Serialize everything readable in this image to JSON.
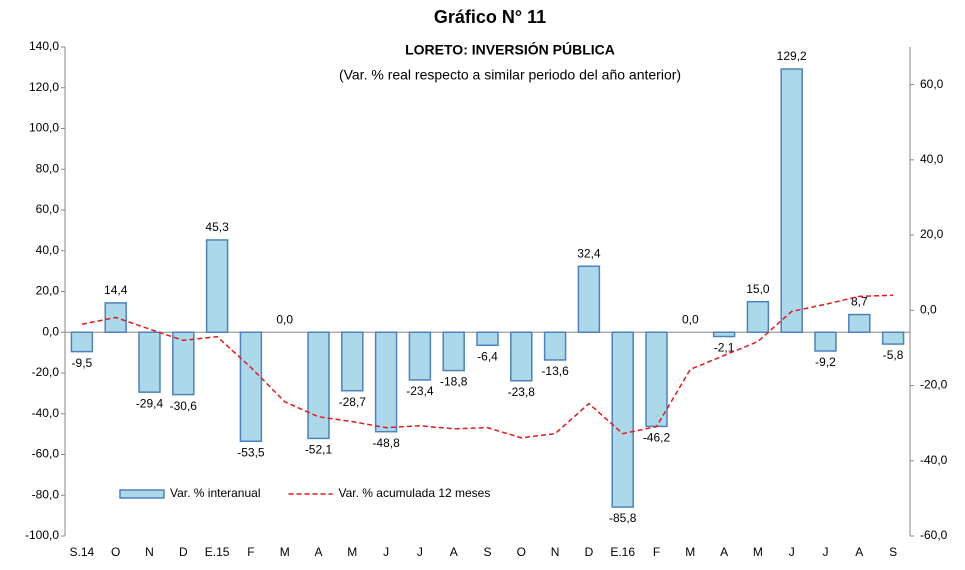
{
  "chart_data": {
    "type": "bar",
    "title": "Gráfico N° 11",
    "subtitle": "LORETO: INVERSIÓN PÚBLICA",
    "subtitle2": "(Var. % real respecto a similar periodo del año anterior)",
    "categories": [
      "S.14",
      "O",
      "N",
      "D",
      "E.15",
      "F",
      "M",
      "A",
      "M",
      "J",
      "J",
      "A",
      "S",
      "O",
      "N",
      "D",
      "E.16",
      "F",
      "M",
      "A",
      "M",
      "J",
      "J",
      "A",
      "S"
    ],
    "series": [
      {
        "name": "Var. % interanual",
        "type": "bar",
        "color": "#acd9ea",
        "stroke": "#4f81bd",
        "values": [
          -9.5,
          14.4,
          -29.4,
          -30.6,
          45.3,
          -53.5,
          0.0,
          -52.1,
          -28.7,
          -48.8,
          -23.4,
          -18.8,
          -6.4,
          -23.8,
          -13.6,
          32.4,
          -85.8,
          -46.2,
          0.0,
          -2.1,
          15.0,
          129.2,
          -9.2,
          8.7,
          -5.8
        ],
        "value_labels": [
          "-9,5",
          "14,4",
          "-29,4",
          "-30,6",
          "45,3",
          "-53,5",
          "0,0",
          "-52,1",
          "-28,7",
          "-48,8",
          "-23,4",
          "-18,8",
          "-6,4",
          "-23,8",
          "-13,6",
          "32,4",
          "-85,8",
          "-46,2",
          "0,0",
          "-2,1",
          "15,0",
          "129,2",
          "-9,2",
          "8,7",
          "-5,8"
        ]
      },
      {
        "name": "Var. % acumulada 12 meses",
        "type": "line",
        "axis": "y2",
        "color": "#e31a1c",
        "dashed": true,
        "values": [
          -3.7,
          -1.9,
          -5.0,
          -8.0,
          -7.0,
          -15.2,
          -24.3,
          -28.3,
          -29.6,
          -31.2,
          -30.7,
          -31.5,
          -31.2,
          -33.9,
          -32.8,
          -24.8,
          -32.8,
          -30.9,
          -15.7,
          -12.0,
          -8.3,
          -0.3,
          1.6,
          3.7,
          4.0
        ]
      }
    ],
    "ylim": [
      -100,
      140
    ],
    "yticks": [
      {
        "value": -100,
        "label": "-100,0"
      },
      {
        "value": -80,
        "label": "-80,0"
      },
      {
        "value": -60,
        "label": "-60,0"
      },
      {
        "value": -40,
        "label": "-40,0"
      },
      {
        "value": -20,
        "label": "-20,0"
      },
      {
        "value": 0,
        "label": "0,0"
      },
      {
        "value": 20,
        "label": "20,0"
      },
      {
        "value": 40,
        "label": "40,0"
      },
      {
        "value": 60,
        "label": "60,0"
      },
      {
        "value": 80,
        "label": "80,0"
      },
      {
        "value": 100,
        "label": "100,0"
      },
      {
        "value": 120,
        "label": "120,0"
      },
      {
        "value": 140,
        "label": "140,0"
      }
    ],
    "y2lim": [
      -60,
      70
    ],
    "y2ticks": [
      {
        "value": -60,
        "label": "-60,0"
      },
      {
        "value": -40,
        "label": "-40,0"
      },
      {
        "value": -20,
        "label": "-20,0"
      },
      {
        "value": 0,
        "label": "0,0"
      },
      {
        "value": 20,
        "label": "20,0"
      },
      {
        "value": 40,
        "label": "40,0"
      },
      {
        "value": 60,
        "label": "60,0"
      }
    ],
    "legend": "lower left",
    "grid": false
  }
}
